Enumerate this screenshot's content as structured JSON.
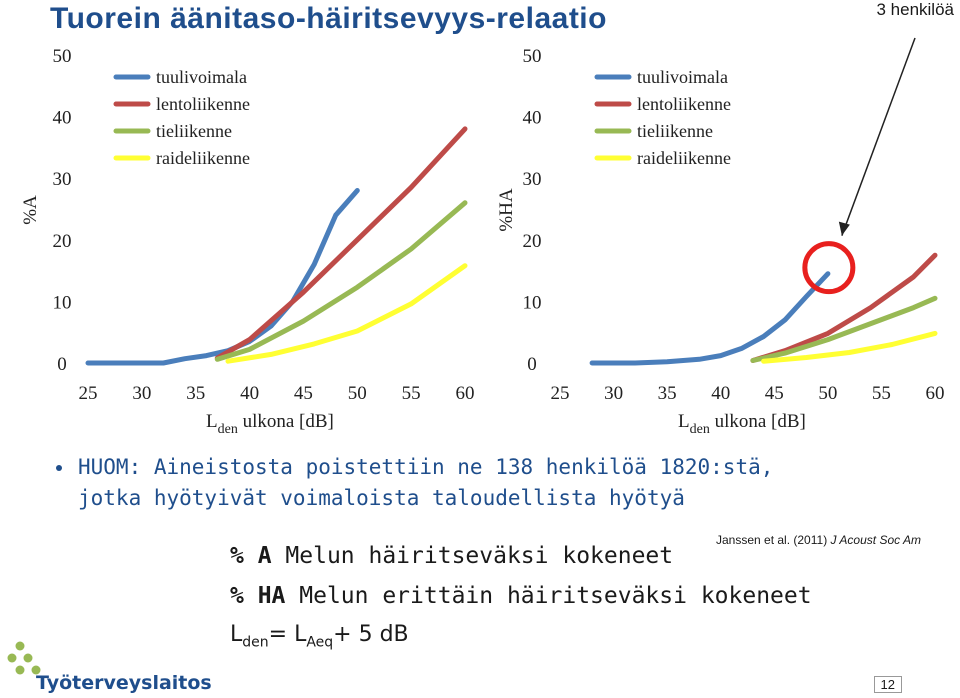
{
  "slide": {
    "title": "Tuorein äänitaso-häiritsevyys-relaatio",
    "callout": "3 henkilöä",
    "bullet_line1": "HUOM: Aineistosta poistettiin ne 138 henkilöä 1820:stä,",
    "bullet_line2": "jotka hyötyivät voimaloista taloudellista hyötyä",
    "citation_authors": "Janssen et al.",
    "citation_year": "(2011)",
    "citation_journal": "J Acoust Soc Am",
    "def_a_abbr": "% A",
    "def_a_text": "Melun häiritseväksi kokeneet",
    "def_ha_abbr": "% HA",
    "def_ha_text": "Melun erittäin häiritseväksi kokeneet",
    "formula_l": "L",
    "formula_den": "den",
    "formula_eq": "= L",
    "formula_aeq": "Aeq",
    "formula_rest": "+ 5 dB",
    "logo_text": "Työterveyslaitos",
    "page_number": "12"
  },
  "colors": {
    "title": "#1f4e8c",
    "tuulivoimala": "#4a7ebb",
    "lentoliikenne": "#be4b48",
    "tieliikenne": "#98b954",
    "raideliikenne": "#ffff33",
    "callout_circle": "#e8201e"
  },
  "chart_data": [
    {
      "type": "line",
      "ylabel": "%A",
      "xlabel_main": "L",
      "xlabel_sub": "den",
      "xlabel_rest": "ulkona [dB]",
      "xlim": [
        25,
        60
      ],
      "ylim": [
        0,
        50
      ],
      "xticks": [
        25,
        30,
        35,
        40,
        45,
        50,
        55,
        60
      ],
      "yticks": [
        0,
        10,
        20,
        30,
        40,
        50
      ],
      "legend_position": "top-left",
      "series": [
        {
          "name": "tuulivoimala",
          "color_key": "tuulivoimala",
          "x": [
            25,
            28,
            30,
            32,
            34,
            36,
            38,
            40,
            42,
            44,
            46,
            48,
            50
          ],
          "y": [
            0,
            0,
            0,
            0,
            0.7,
            1.2,
            2.0,
            3.5,
            6.0,
            10.0,
            16.0,
            24.0,
            28.0
          ]
        },
        {
          "name": "lentoliikenne",
          "color_key": "lentoliikenne",
          "x": [
            37,
            40,
            45,
            50,
            55,
            60
          ],
          "y": [
            0.8,
            3.8,
            11.5,
            20.0,
            28.5,
            38.0
          ]
        },
        {
          "name": "tieliikenne",
          "color_key": "tieliikenne",
          "x": [
            37,
            40,
            45,
            50,
            55,
            60
          ],
          "y": [
            0.6,
            2.2,
            6.8,
            12.3,
            18.5,
            26.0
          ]
        },
        {
          "name": "raideliikenne",
          "color_key": "raideliikenne",
          "x": [
            38,
            42,
            46,
            50,
            55,
            60
          ],
          "y": [
            0.3,
            1.4,
            3.1,
            5.2,
            9.6,
            15.8
          ]
        }
      ]
    },
    {
      "type": "line",
      "ylabel": "%HA",
      "xlabel_main": "L",
      "xlabel_sub": "den",
      "xlabel_rest": "ulkona [dB]",
      "xlim": [
        25,
        60
      ],
      "ylim": [
        0,
        50
      ],
      "xticks": [
        25,
        30,
        35,
        40,
        45,
        50,
        55,
        60
      ],
      "yticks": [
        0,
        10,
        20,
        30,
        40,
        50
      ],
      "legend_position": "top-left",
      "series": [
        {
          "name": "tuulivoimala",
          "color_key": "tuulivoimala",
          "x": [
            28,
            32,
            35,
            38,
            40,
            42,
            44,
            46,
            48,
            50
          ],
          "y": [
            0,
            0,
            0.2,
            0.6,
            1.2,
            2.4,
            4.3,
            7.0,
            10.8,
            14.5
          ]
        },
        {
          "name": "lentoliikenne",
          "color_key": "lentoliikenne",
          "x": [
            43,
            46,
            50,
            54,
            58,
            60
          ],
          "y": [
            0.4,
            2.0,
            4.8,
            9.0,
            14.0,
            17.5
          ]
        },
        {
          "name": "tieliikenne",
          "color_key": "tieliikenne",
          "x": [
            43,
            46,
            50,
            54,
            58,
            60
          ],
          "y": [
            0.4,
            1.6,
            3.8,
            6.4,
            9.0,
            10.5
          ]
        },
        {
          "name": "raideliikenne",
          "color_key": "raideliikenne",
          "x": [
            44,
            48,
            52,
            56,
            60
          ],
          "y": [
            0.3,
            0.9,
            1.7,
            3.0,
            4.8
          ]
        }
      ]
    }
  ]
}
